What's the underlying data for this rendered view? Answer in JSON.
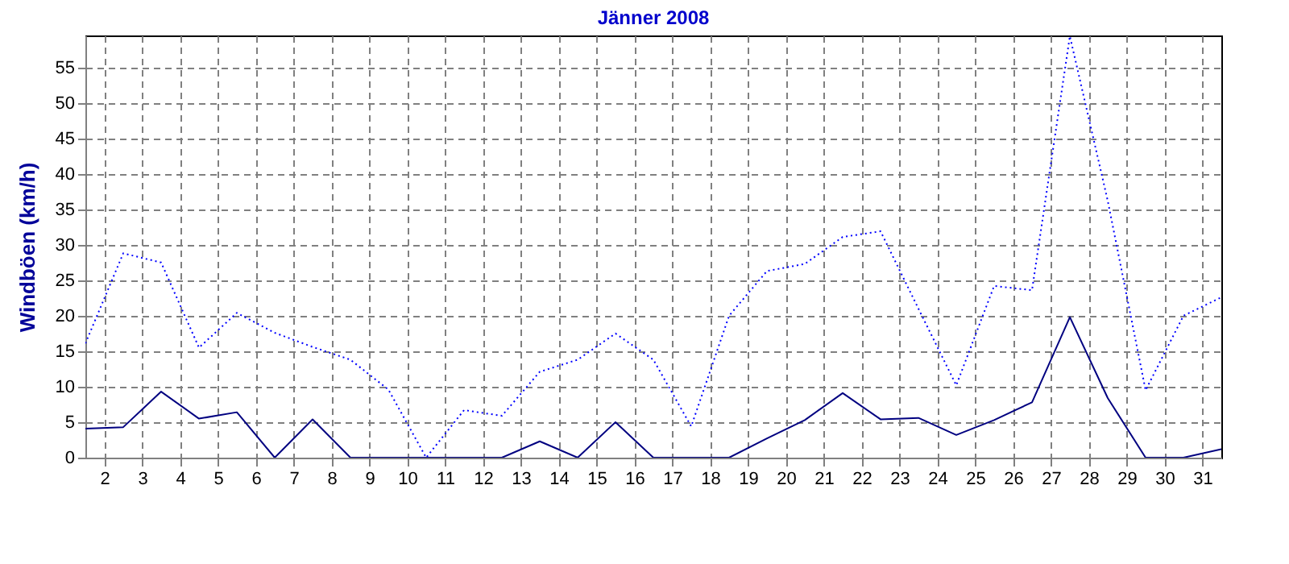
{
  "chart_data": {
    "type": "line",
    "title": "Jänner 2008",
    "ylabel": "Windböen  (km/h)",
    "x": [
      1.5,
      2.5,
      3.5,
      4.5,
      5.5,
      6.5,
      7.5,
      8.5,
      9.5,
      10.5,
      11.5,
      12.5,
      13.5,
      14.5,
      15.5,
      16.5,
      17.5,
      18.5,
      19.5,
      20.5,
      21.5,
      22.5,
      23.5,
      24.5,
      25.5,
      26.5,
      27.5,
      28.5,
      29.5,
      30.5,
      31.5
    ],
    "series": [
      {
        "color": "#0000ff",
        "line_style": "dotted",
        "values": [
          16.1,
          28.8,
          27.5,
          15.5,
          20.4,
          17.6,
          15.6,
          13.8,
          9.6,
          0,
          6.7,
          5.9,
          12.1,
          13.8,
          17.5,
          13.8,
          4.4,
          20,
          26.3,
          27.3,
          31.1,
          31.9,
          21,
          10.2,
          24.2,
          23.6,
          59.4,
          36.2,
          9.5,
          20,
          22.6
        ]
      },
      {
        "color": "#000080",
        "line_style": "solid",
        "values": [
          4.1,
          4.3,
          9.3,
          5.5,
          6.4,
          0,
          5.4,
          0,
          0,
          0,
          0,
          0,
          2.3,
          0,
          5,
          0,
          0,
          0,
          2.7,
          5.3,
          9.1,
          5.4,
          5.6,
          3.2,
          5.3,
          7.8,
          19.8,
          8.4,
          0,
          0,
          1.2
        ]
      }
    ],
    "xlim": [
      1.5,
      31.5
    ],
    "xticks": [
      2,
      3,
      4,
      5,
      6,
      7,
      8,
      9,
      10,
      11,
      12,
      13,
      14,
      15,
      16,
      17,
      18,
      19,
      20,
      21,
      22,
      23,
      24,
      25,
      26,
      27,
      28,
      29,
      30,
      31
    ],
    "ylim": [
      0,
      59.5
    ],
    "yticks": [
      0,
      5,
      10,
      15,
      20,
      25,
      30,
      35,
      40,
      45,
      50,
      55
    ],
    "grid": true,
    "marker": "none"
  }
}
